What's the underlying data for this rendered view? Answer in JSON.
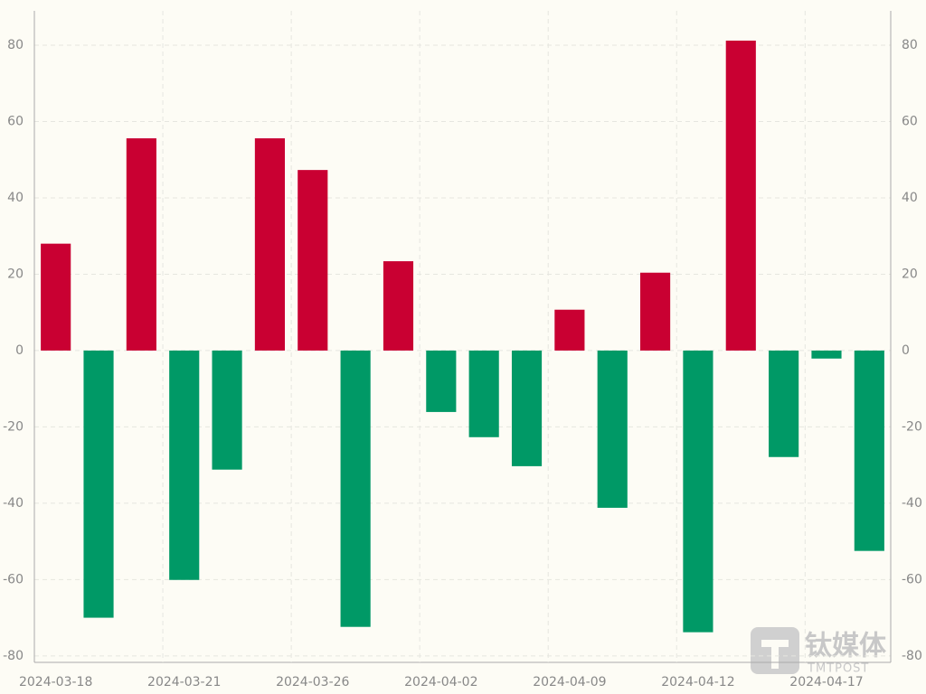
{
  "chart_data": {
    "type": "bar",
    "categories": [
      "2024-03-18",
      null,
      null,
      "2024-03-21",
      null,
      null,
      "2024-03-26",
      null,
      null,
      "2024-04-02",
      null,
      null,
      "2024-04-09",
      null,
      null,
      "2024-04-12",
      null,
      null,
      "2024-04-17",
      null
    ],
    "values": [
      28,
      -70,
      55.6,
      -60.1,
      -31.2,
      55.6,
      47.3,
      -72.4,
      23.4,
      -16.1,
      -22.7,
      -30.3,
      10.7,
      -41.2,
      20.4,
      -73.8,
      81.2,
      -27.9,
      -2.1,
      -52.5
    ],
    "positive_color": "#c90032",
    "negative_color": "#009966",
    "ylim": [
      -81.7,
      89
    ],
    "yticks": [
      -80,
      -60,
      -40,
      -20,
      0,
      20,
      40,
      60,
      80
    ],
    "y2lim": [
      -81.7,
      89
    ],
    "y2ticks": [
      -80,
      -60,
      -40,
      -20,
      0,
      20,
      40,
      60,
      80
    ],
    "grid": true,
    "watermark": {
      "name": "钛媒体",
      "brand": "TMTPOST"
    }
  }
}
